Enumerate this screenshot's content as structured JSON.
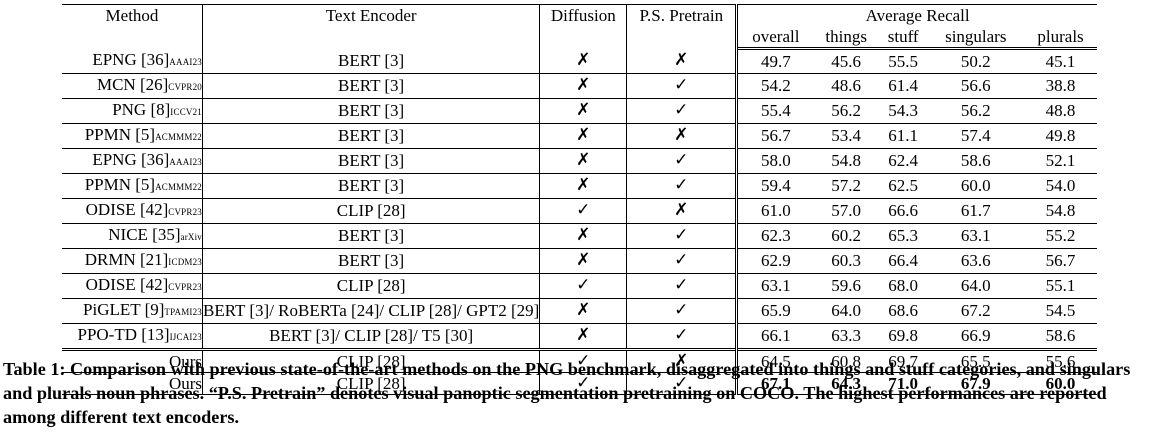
{
  "table": {
    "headers": {
      "method": "Method",
      "text_encoder": "Text Encoder",
      "diffusion": "Diffusion",
      "ps_pretrain": "P.S. Pretrain",
      "average_recall": "Average Recall",
      "metrics": [
        "overall",
        "things",
        "stuff",
        "singulars",
        "plurals"
      ]
    },
    "rows": [
      {
        "method": "EPNG [36]",
        "venue": "AAAI23",
        "encoder": "BERT [3]",
        "diffusion": "✗",
        "ps": "✗",
        "values": [
          "49.7",
          "45.6",
          "55.5",
          "50.2",
          "45.1"
        ]
      },
      {
        "method": "MCN [26]",
        "venue": "CVPR20",
        "encoder": "BERT [3]",
        "diffusion": "✗",
        "ps": "✓",
        "values": [
          "54.2",
          "48.6",
          "61.4",
          "56.6",
          "38.8"
        ]
      },
      {
        "method": "PNG [8]",
        "venue": "ICCV21",
        "encoder": "BERT [3]",
        "diffusion": "✗",
        "ps": "✓",
        "values": [
          "55.4",
          "56.2",
          "54.3",
          "56.2",
          "48.8"
        ]
      },
      {
        "method": "PPMN [5]",
        "venue": "ACMMM22",
        "encoder": "BERT [3]",
        "diffusion": "✗",
        "ps": "✗",
        "values": [
          "56.7",
          "53.4",
          "61.1",
          "57.4",
          "49.8"
        ]
      },
      {
        "method": "EPNG [36]",
        "venue": "AAAI23",
        "encoder": "BERT [3]",
        "diffusion": "✗",
        "ps": "✓",
        "values": [
          "58.0",
          "54.8",
          "62.4",
          "58.6",
          "52.1"
        ]
      },
      {
        "method": "PPMN [5]",
        "venue": "ACMMM22",
        "encoder": "BERT [3]",
        "diffusion": "✗",
        "ps": "✓",
        "values": [
          "59.4",
          "57.2",
          "62.5",
          "60.0",
          "54.0"
        ]
      },
      {
        "method": "ODISE [42]",
        "venue": "CVPR23",
        "encoder": "CLIP [28]",
        "diffusion": "✓",
        "ps": "✗",
        "values": [
          "61.0",
          "57.0",
          "66.6",
          "61.7",
          "54.8"
        ]
      },
      {
        "method": "NICE [35]",
        "venue": "arXiv",
        "encoder": "BERT [3]",
        "diffusion": "✗",
        "ps": "✓",
        "values": [
          "62.3",
          "60.2",
          "65.3",
          "63.1",
          "55.2"
        ]
      },
      {
        "method": "DRMN [21]",
        "venue": "ICDM23",
        "encoder": "BERT [3]",
        "diffusion": "✗",
        "ps": "✓",
        "values": [
          "62.9",
          "60.3",
          "66.4",
          "63.6",
          "56.7"
        ]
      },
      {
        "method": "ODISE [42]",
        "venue": "CVPR23",
        "encoder": "CLIP [28]",
        "diffusion": "✓",
        "ps": "✓",
        "values": [
          "63.1",
          "59.6",
          "68.0",
          "64.0",
          "55.1"
        ]
      },
      {
        "method": "PiGLET [9]",
        "venue": "TPAMI23",
        "encoder": "BERT [3]/ RoBERTa [24]/ CLIP [28]/ GPT2 [29]",
        "diffusion": "✗",
        "ps": "✓",
        "values": [
          "65.9",
          "64.0",
          "68.6",
          "67.2",
          "54.5"
        ]
      },
      {
        "method": "PPO-TD [13]",
        "venue": "IJCAI23",
        "encoder": "BERT [3]/ CLIP [28]/ T5 [30]",
        "diffusion": "✗",
        "ps": "✓",
        "values": [
          "66.1",
          "63.3",
          "69.8",
          "66.9",
          "58.6"
        ]
      }
    ],
    "ours": [
      {
        "method": "Ours",
        "encoder": "CLIP [28]",
        "diffusion": "✓",
        "ps": "✗",
        "values": [
          "64.5",
          "60.8",
          "69.7",
          "65.5",
          "55.6"
        ]
      },
      {
        "method": "Ours",
        "encoder": "CLIP [28]",
        "diffusion": "✓",
        "ps": "✓",
        "values": [
          "67.1",
          "64.3",
          "71.0",
          "67.9",
          "60.0"
        ]
      }
    ]
  },
  "caption": "Table 1: Comparison with previous state-of-the-art methods on the PNG benchmark, disaggregated into things and stuff categories, and singulars and plurals noun phrases. “P.S. Pretrain” denotes visual panoptic segmentation pretraining on COCO. The highest performances are reported among different text encoders."
}
